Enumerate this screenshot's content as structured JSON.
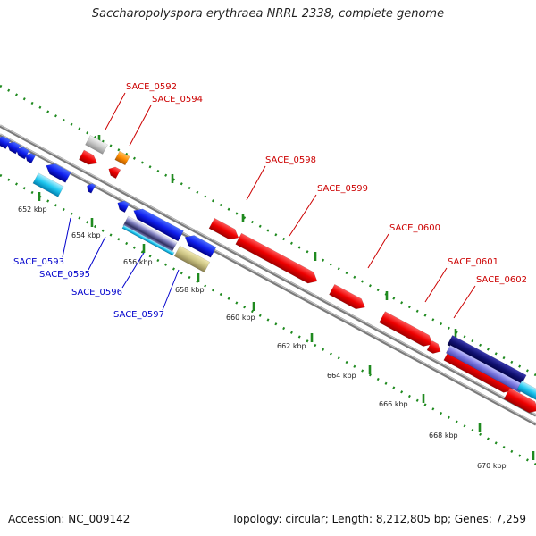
{
  "title": "Saccharopolyspora erythraea NRRL 2338, complete genome",
  "footer": {
    "accession": "Accession: NC_009142",
    "summary": "Topology: circular; Length: 8,212,805 bp; Genes: 7,259"
  },
  "ruler": {
    "color": "#1f8a1f",
    "labels": [
      "652 kbp",
      "654 kbp",
      "656 kbp",
      "658 kbp",
      "660 kbp",
      "662 kbp",
      "664 kbp",
      "666 kbp",
      "668 kbp",
      "670 kbp"
    ]
  },
  "genes": {
    "forward_labels": [
      "SACE_0592",
      "SACE_0594",
      "SACE_0598",
      "SACE_0599",
      "SACE_0600",
      "SACE_0601",
      "SACE_0602"
    ],
    "forward_color": "#cc0000",
    "reverse_labels": [
      "SACE_0593",
      "SACE_0595",
      "SACE_0596",
      "SACE_0597"
    ],
    "reverse_color": "#0000cc"
  }
}
